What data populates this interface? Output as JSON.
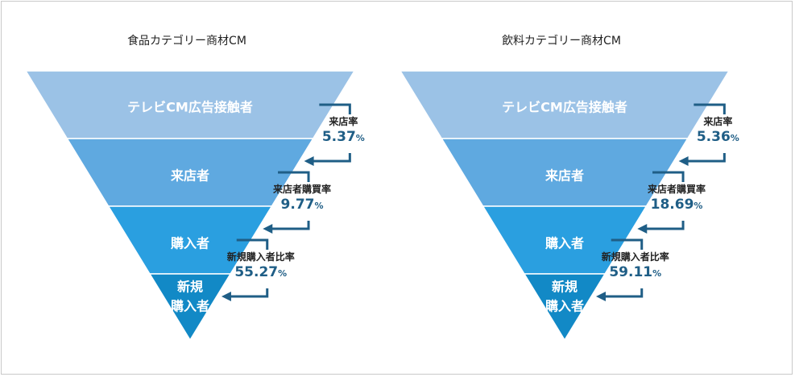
{
  "chart_data": [
    {
      "type": "funnel",
      "title": "食品カテゴリー商材CM",
      "stages": [
        "テレビCM広告接触者",
        "来店者",
        "購入者",
        "新規\n購入者"
      ],
      "conversions": [
        {
          "label": "来店率",
          "value": 5.37,
          "unit": "%"
        },
        {
          "label": "来店者購買率",
          "value": 9.77,
          "unit": "%"
        },
        {
          "label": "新規購入者比率",
          "value": 55.27,
          "unit": "%"
        }
      ]
    },
    {
      "type": "funnel",
      "title": "飲料カテゴリー商材CM",
      "stages": [
        "テレビCM広告接触者",
        "来店者",
        "購入者",
        "新規\n購入者"
      ],
      "conversions": [
        {
          "label": "来店率",
          "value": 5.36,
          "unit": "%"
        },
        {
          "label": "来店者購買率",
          "value": 18.69,
          "unit": "%"
        },
        {
          "label": "新規購入者比率",
          "value": 59.11,
          "unit": "%"
        }
      ]
    }
  ],
  "colors": {
    "stages": [
      "#9bc2e6",
      "#5fa9e0",
      "#2a9fe0",
      "#1289c6"
    ],
    "arrow": "#1f5e86",
    "value_text": "#1f5e86"
  }
}
